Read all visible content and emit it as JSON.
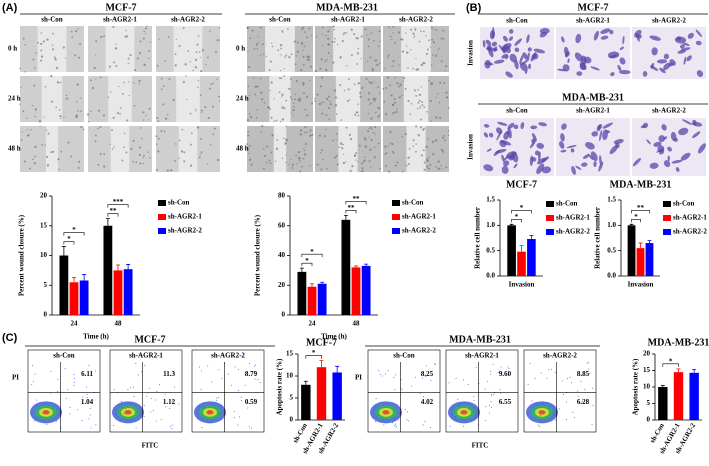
{
  "panel_labels": [
    "(A)",
    "(B)",
    "(C)"
  ],
  "wound_panels": [
    {
      "header": "MCF-7",
      "columns": [
        "sh-Con",
        "sh-AGR2-1",
        "sh-AGR2-2"
      ],
      "rows": [
        "0 h",
        "24 h",
        "48 h"
      ]
    },
    {
      "header": "MDA-MB-231",
      "columns": [
        "sh-Con",
        "sh-AGR2-1",
        "sh-AGR2-2"
      ],
      "rows": [
        "0 h",
        "24 h",
        "48 h"
      ]
    }
  ],
  "invasion_panels": [
    {
      "header": "MCF-7",
      "columns": [
        "sh-Con",
        "sh-AGR2-1",
        "sh-AGR2-2"
      ],
      "row": "Invasion"
    },
    {
      "header": "MDA-MB-231",
      "columns": [
        "sh-Con",
        "sh-AGR2-1",
        "sh-AGR2-2"
      ],
      "row": "Invasion"
    }
  ],
  "flow_panels": [
    {
      "header": "MCF-7",
      "x_label": "FITC",
      "y_label": "PI",
      "plots": [
        {
          "label": "sh-Con",
          "q2": "6.11",
          "q4": "1.04"
        },
        {
          "label": "sh-AGR2-1",
          "q2": "11.3",
          "q4": "1.12"
        },
        {
          "label": "sh-AGR2-2",
          "q2": "8.79",
          "q4": "0.59"
        }
      ]
    },
    {
      "header": "MDA-MB-231",
      "x_label": "FITC",
      "y_label": "PI",
      "plots": [
        {
          "label": "sh-Con",
          "q2": "8.25",
          "q4": "4.02"
        },
        {
          "label": "sh-AGR2-1",
          "q2": "9.60",
          "q4": "6.55"
        },
        {
          "label": "sh-AGR2-2",
          "q2": "8.85",
          "q4": "6.28"
        }
      ]
    }
  ],
  "chart_data": [
    {
      "type": "bar",
      "categories": [
        "24",
        "48"
      ],
      "series": [
        {
          "name": "sh-Con",
          "color": "#000000",
          "values": [
            10,
            15
          ],
          "errors": [
            1.5,
            1.2
          ]
        },
        {
          "name": "sh-AGR2-1",
          "color": "#ff0000",
          "values": [
            5.5,
            7.5
          ],
          "errors": [
            0.8,
            0.9
          ]
        },
        {
          "name": "sh-AGR2-2",
          "color": "#0000ff",
          "values": [
            5.8,
            7.7
          ],
          "errors": [
            1,
            0.8
          ]
        }
      ],
      "ylim": [
        0,
        20
      ],
      "yticks": [
        0,
        5,
        10,
        15,
        20
      ],
      "y_label": "Percent wound closure (%)",
      "x_label": "Time (h)",
      "legend": "right",
      "annotations": [
        "*",
        "*",
        "**",
        "***"
      ]
    },
    {
      "type": "bar",
      "categories": [
        "24",
        "48"
      ],
      "series": [
        {
          "name": "sh-Con",
          "color": "#000000",
          "values": [
            29,
            64
          ],
          "errors": [
            2.5,
            3
          ]
        },
        {
          "name": "sh-AGR2-1",
          "color": "#ff0000",
          "values": [
            19,
            32
          ],
          "errors": [
            2,
            1
          ]
        },
        {
          "name": "sh-AGR2-2",
          "color": "#0000ff",
          "values": [
            21,
            33
          ],
          "errors": [
            1,
            1.2
          ]
        }
      ],
      "ylim": [
        0,
        80
      ],
      "yticks": [
        0,
        20,
        40,
        60,
        80
      ],
      "y_label": "Percent wound closure (%)",
      "x_label": "Time (h)",
      "legend": "right",
      "annotations": [
        "*",
        "*",
        "**",
        "**"
      ]
    },
    {
      "type": "bar",
      "title": "MCF-7",
      "categories": [
        "Invasion"
      ],
      "series": [
        {
          "name": "sh-Con",
          "color": "#000000",
          "values": [
            1.0
          ],
          "errors": [
            0.02
          ]
        },
        {
          "name": "sh-AGR2-1",
          "color": "#ff0000",
          "values": [
            0.48
          ],
          "errors": [
            0.12
          ]
        },
        {
          "name": "sh-AGR2-2",
          "color": "#0000ff",
          "values": [
            0.73
          ],
          "errors": [
            0.07
          ]
        }
      ],
      "ylim": [
        0,
        1.5
      ],
      "yticks": [
        {
          "value": 0,
          "label": "0.0"
        },
        0.5,
        {
          "value": 1,
          "label": "1.0"
        },
        1.5
      ],
      "y_label": "Relative cell number",
      "legend": "right",
      "annotations": [
        "*",
        "*"
      ]
    },
    {
      "type": "bar",
      "title": "MDA-MB-231",
      "categories": [
        "Invasion"
      ],
      "series": [
        {
          "name": "sh-Con",
          "color": "#000000",
          "values": [
            1.0
          ],
          "errors": [
            0.02
          ]
        },
        {
          "name": "sh-AGR2-1",
          "color": "#ff0000",
          "values": [
            0.55
          ],
          "errors": [
            0.1
          ]
        },
        {
          "name": "sh-AGR2-2",
          "color": "#0000ff",
          "values": [
            0.65
          ],
          "errors": [
            0.05
          ]
        }
      ],
      "ylim": [
        0,
        1.5
      ],
      "yticks": [
        {
          "value": 0,
          "label": "0.0"
        },
        0.5,
        {
          "value": 1,
          "label": "1.0"
        },
        1.5
      ],
      "y_label": "Relative cell number",
      "legend": "right",
      "annotations": [
        "*",
        "**"
      ]
    },
    {
      "type": "bar",
      "title": "MCF-7",
      "categories": [
        "sh-Con",
        "sh-AGR2-1",
        "sh-AGR2-2"
      ],
      "values": [
        8,
        12,
        10.8
      ],
      "errors": [
        0.8,
        1.5,
        1.4
      ],
      "colors": [
        "#000000",
        "#ff0000",
        "#0000ff"
      ],
      "ylim": [
        0,
        15
      ],
      "yticks": [
        0,
        5,
        10,
        15
      ],
      "y_label": "Apoptosis rate (%)",
      "annotations": [
        "*"
      ]
    },
    {
      "type": "bar",
      "title": "MDA-MB-231",
      "categories": [
        "sh-Con",
        "sh-AGR2-1",
        "sh-AGR2-2"
      ],
      "values": [
        10,
        14.5,
        14.3
      ],
      "errors": [
        0.5,
        1,
        1
      ],
      "colors": [
        "#000000",
        "#ff0000",
        "#0000ff"
      ],
      "ylim": [
        0,
        20
      ],
      "yticks": [
        0,
        5,
        10,
        15,
        20
      ],
      "y_label": "Apoptosis rate (%)",
      "annotations": [
        "*"
      ]
    }
  ]
}
